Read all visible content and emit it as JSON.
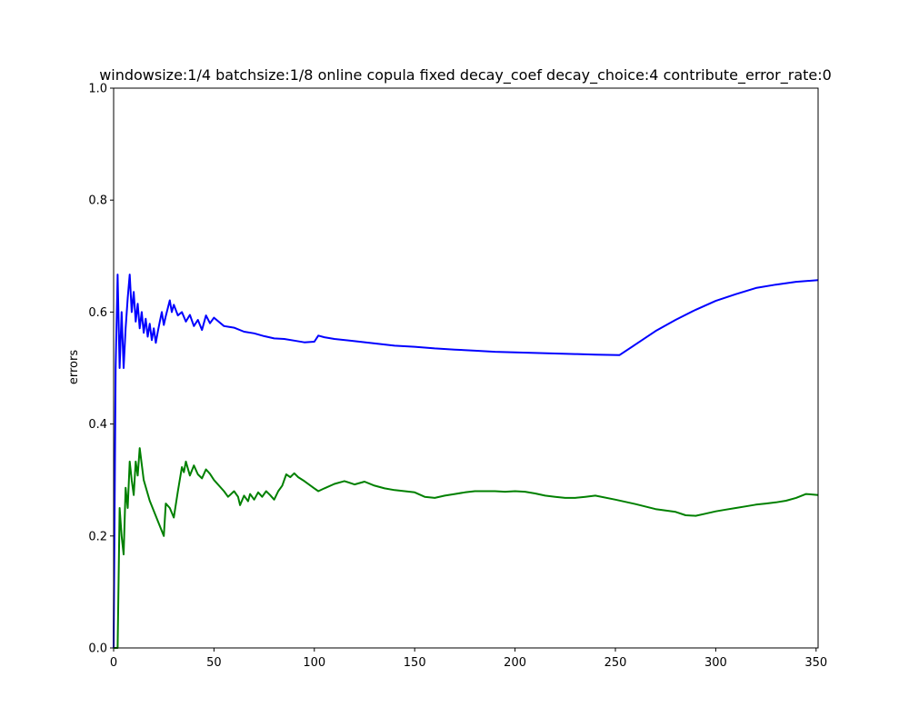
{
  "chart_data": {
    "type": "line",
    "title": "windowsize:1/4  batchsize:1/8 online copula  fixed decay_coef  decay_choice:4  contribute_error_rate:0",
    "xlabel": "",
    "ylabel": "errors",
    "xlim": [
      0,
      351
    ],
    "ylim": [
      0,
      1.0
    ],
    "x_ticks": [
      "0",
      "50",
      "100",
      "150",
      "200",
      "250",
      "300",
      "350"
    ],
    "x_tick_values": [
      0,
      50,
      100,
      150,
      200,
      250,
      300,
      350
    ],
    "y_ticks": [
      "0.0",
      "0.2",
      "0.4",
      "0.6",
      "0.8",
      "1.0"
    ],
    "y_tick_values": [
      0,
      0.2,
      0.4,
      0.6,
      0.8,
      1.0
    ],
    "grid": false,
    "series": [
      {
        "color": "#0000ff",
        "x": [
          0,
          1,
          2,
          3,
          4,
          5,
          6,
          7,
          8,
          9,
          10,
          11,
          12,
          13,
          14,
          15,
          16,
          17,
          18,
          19,
          20,
          21,
          22,
          23,
          24,
          25,
          26,
          27,
          28,
          29,
          30,
          32,
          34,
          36,
          38,
          40,
          42,
          44,
          46,
          48,
          50,
          55,
          60,
          65,
          70,
          75,
          80,
          85,
          90,
          95,
          100,
          102,
          105,
          110,
          120,
          130,
          140,
          150,
          160,
          170,
          180,
          190,
          200,
          210,
          220,
          230,
          240,
          252,
          260,
          270,
          280,
          290,
          300,
          310,
          320,
          330,
          340,
          351
        ],
        "y": [
          0.0,
          0.5,
          0.667,
          0.5,
          0.6,
          0.5,
          0.571,
          0.625,
          0.667,
          0.6,
          0.636,
          0.583,
          0.615,
          0.571,
          0.6,
          0.563,
          0.588,
          0.556,
          0.579,
          0.55,
          0.571,
          0.545,
          0.565,
          0.583,
          0.6,
          0.577,
          0.593,
          0.607,
          0.621,
          0.6,
          0.613,
          0.594,
          0.6,
          0.583,
          0.595,
          0.575,
          0.586,
          0.568,
          0.594,
          0.58,
          0.59,
          0.575,
          0.572,
          0.565,
          0.562,
          0.557,
          0.553,
          0.552,
          0.549,
          0.546,
          0.547,
          0.558,
          0.555,
          0.552,
          0.548,
          0.544,
          0.54,
          0.538,
          0.535,
          0.533,
          0.531,
          0.529,
          0.528,
          0.527,
          0.526,
          0.525,
          0.524,
          0.523,
          0.542,
          0.566,
          0.586,
          0.604,
          0.62,
          0.632,
          0.643,
          0.649,
          0.654,
          0.657
        ]
      },
      {
        "color": "#008000",
        "x": [
          0,
          1,
          2,
          3,
          4,
          5,
          6,
          7,
          8,
          9,
          10,
          11,
          12,
          13,
          15,
          18,
          22,
          25,
          26,
          28,
          30,
          32,
          34,
          35,
          36,
          38,
          40,
          42,
          44,
          46,
          48,
          50,
          55,
          57,
          60,
          62,
          63,
          65,
          67,
          68,
          70,
          72,
          74,
          76,
          78,
          80,
          82,
          84,
          86,
          88,
          90,
          92,
          95,
          100,
          102,
          105,
          110,
          115,
          120,
          125,
          130,
          135,
          140,
          145,
          150,
          155,
          160,
          165,
          170,
          175,
          180,
          185,
          190,
          195,
          200,
          205,
          210,
          215,
          220,
          225,
          230,
          235,
          240,
          250,
          260,
          270,
          280,
          285,
          290,
          295,
          300,
          305,
          310,
          315,
          320,
          325,
          330,
          335,
          340,
          345,
          351
        ],
        "y": [
          0.0,
          0.0,
          0.0,
          0.25,
          0.2,
          0.167,
          0.286,
          0.25,
          0.333,
          0.3,
          0.273,
          0.333,
          0.308,
          0.357,
          0.3,
          0.263,
          0.227,
          0.2,
          0.258,
          0.25,
          0.233,
          0.28,
          0.323,
          0.314,
          0.333,
          0.308,
          0.326,
          0.31,
          0.303,
          0.319,
          0.311,
          0.3,
          0.28,
          0.27,
          0.28,
          0.27,
          0.255,
          0.272,
          0.262,
          0.275,
          0.265,
          0.278,
          0.27,
          0.28,
          0.273,
          0.265,
          0.28,
          0.29,
          0.31,
          0.305,
          0.312,
          0.305,
          0.298,
          0.285,
          0.28,
          0.285,
          0.293,
          0.298,
          0.292,
          0.297,
          0.29,
          0.285,
          0.282,
          0.28,
          0.278,
          0.27,
          0.268,
          0.272,
          0.275,
          0.278,
          0.28,
          0.28,
          0.28,
          0.279,
          0.28,
          0.279,
          0.276,
          0.272,
          0.27,
          0.268,
          0.268,
          0.27,
          0.272,
          0.265,
          0.257,
          0.248,
          0.243,
          0.237,
          0.236,
          0.24,
          0.244,
          0.247,
          0.25,
          0.253,
          0.256,
          0.258,
          0.26,
          0.263,
          0.268,
          0.275,
          0.273
        ]
      }
    ]
  }
}
